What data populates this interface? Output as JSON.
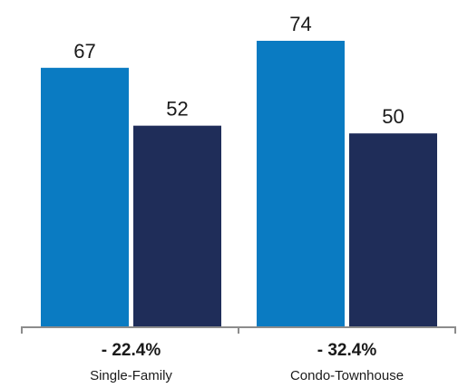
{
  "colors": {
    "series_1": "#0a7bc2",
    "series_2": "#1f2d59",
    "axis": "#8c8c8c",
    "text": "#1a1a1a"
  },
  "chart_data": {
    "type": "bar",
    "categories": [
      "Single-Family",
      "Condo-Townhouse"
    ],
    "series": [
      {
        "values": [
          67,
          74
        ]
      },
      {
        "values": [
          52,
          50
        ]
      }
    ],
    "category_changes": [
      "- 22.4%",
      "- 32.4%"
    ],
    "ylim": [
      0,
      80
    ],
    "grid": false,
    "legend": "none"
  }
}
